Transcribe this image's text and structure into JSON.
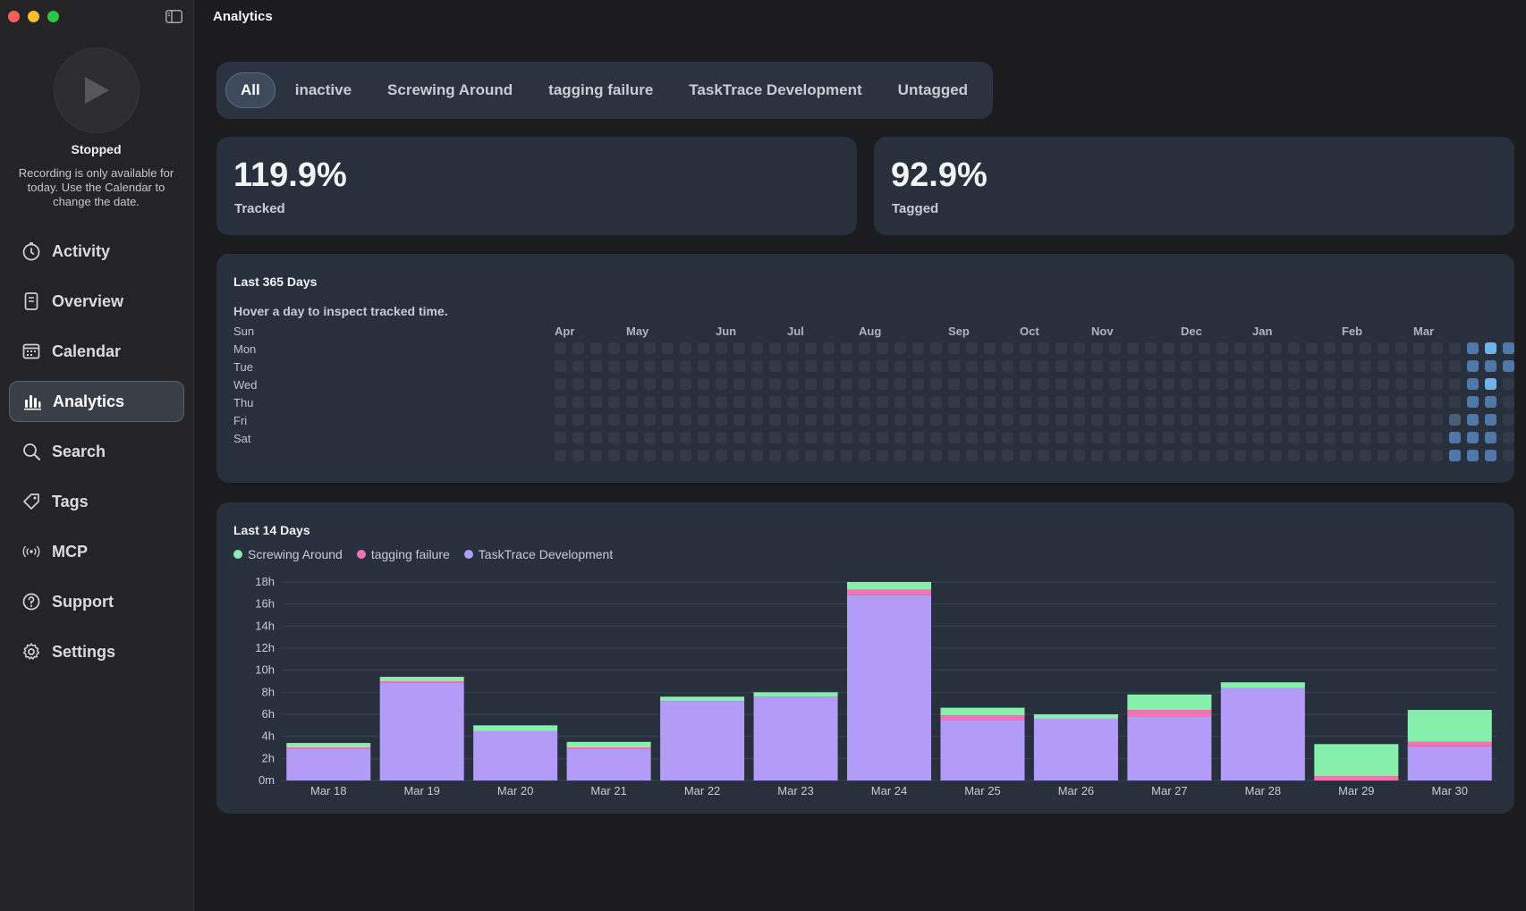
{
  "window": {
    "title": "Analytics"
  },
  "sidebar": {
    "status": "Stopped",
    "note": "Recording is only available for today. Use the Calendar to change the date.",
    "items": [
      {
        "label": "Activity",
        "icon": "clock-icon"
      },
      {
        "label": "Overview",
        "icon": "document-icon"
      },
      {
        "label": "Calendar",
        "icon": "calendar-icon"
      },
      {
        "label": "Analytics",
        "icon": "bar-chart-icon",
        "active": true
      },
      {
        "label": "Search",
        "icon": "search-icon"
      },
      {
        "label": "Tags",
        "icon": "tag-icon"
      },
      {
        "label": "MCP",
        "icon": "broadcast-icon"
      },
      {
        "label": "Support",
        "icon": "help-icon"
      },
      {
        "label": "Settings",
        "icon": "gear-icon"
      }
    ]
  },
  "filters": {
    "items": [
      "All",
      "inactive",
      "Screwing Around",
      "tagging failure",
      "TaskTrace Development",
      "Untagged"
    ],
    "active": "All"
  },
  "stats": {
    "tracked": {
      "value": "119.9%",
      "label": "Tracked"
    },
    "tagged": {
      "value": "92.9%",
      "label": "Tagged"
    }
  },
  "heatmap": {
    "title": "Last 365 Days",
    "subtitle": "Hover a day to inspect tracked time.",
    "days": [
      "Sun",
      "Mon",
      "Tue",
      "Wed",
      "Thu",
      "Fri",
      "Sat"
    ],
    "months": [
      "Apr",
      "May",
      "Jun",
      "Jul",
      "Aug",
      "Sep",
      "Oct",
      "Nov",
      "Dec",
      "Jan",
      "Feb",
      "Mar"
    ],
    "active_cells": [
      {
        "week": 51,
        "day": 1,
        "level": 2
      },
      {
        "week": 52,
        "day": 1,
        "level": 3
      },
      {
        "week": 53,
        "day": 1,
        "level": 2
      },
      {
        "week": 52,
        "day": 2,
        "level": 2
      },
      {
        "week": 53,
        "day": 2,
        "level": 2
      },
      {
        "week": 51,
        "day": 2,
        "level": 2
      },
      {
        "week": 51,
        "day": 3,
        "level": 2
      },
      {
        "week": 52,
        "day": 3,
        "level": 3
      },
      {
        "week": 51,
        "day": 4,
        "level": 2
      },
      {
        "week": 52,
        "day": 4,
        "level": 2
      },
      {
        "week": 50,
        "day": 5,
        "level": 1
      },
      {
        "week": 51,
        "day": 5,
        "level": 2
      },
      {
        "week": 52,
        "day": 5,
        "level": 2
      },
      {
        "week": 50,
        "day": 6,
        "level": 2
      },
      {
        "week": 51,
        "day": 6,
        "level": 2
      },
      {
        "week": 52,
        "day": 6,
        "level": 2
      },
      {
        "week": 50,
        "day": 7,
        "level": 2
      },
      {
        "week": 51,
        "day": 7,
        "level": 2
      },
      {
        "week": 52,
        "day": 7,
        "level": 2
      }
    ],
    "colors": {
      "empty": "#323a48",
      "level1": "#4a5c76",
      "level2": "#4f77a8",
      "level3": "#6fb3ea"
    }
  },
  "chart_data": {
    "type": "bar",
    "stacked": true,
    "title": "Last 14 Days",
    "categories": [
      "Mar 18",
      "Mar 19",
      "Mar 20",
      "Mar 21",
      "Mar 22",
      "Mar 23",
      "Mar 24",
      "Mar 25",
      "Mar 26",
      "Mar 27",
      "Mar 28",
      "Mar 29",
      "Mar 30"
    ],
    "series": [
      {
        "name": "TaskTrace Development",
        "color": "#b39cf7",
        "values": [
          2.9,
          8.9,
          4.5,
          2.9,
          7.2,
          7.6,
          16.8,
          5.5,
          5.6,
          5.8,
          8.4,
          0.0,
          3.1
        ]
      },
      {
        "name": "tagging failure",
        "color": "#f472b6",
        "values": [
          0.1,
          0.1,
          0.0,
          0.1,
          0.0,
          0.0,
          0.5,
          0.4,
          0.0,
          0.6,
          0.0,
          0.4,
          0.4
        ]
      },
      {
        "name": "Screwing Around",
        "color": "#86efac",
        "values": [
          0.4,
          0.4,
          0.5,
          0.5,
          0.4,
          0.4,
          0.7,
          0.7,
          0.4,
          1.4,
          0.5,
          2.9,
          2.9
        ]
      }
    ],
    "legend_order": [
      "Screwing Around",
      "tagging failure",
      "TaskTrace Development"
    ],
    "y_ticks": [
      "0m",
      "2h",
      "4h",
      "6h",
      "8h",
      "10h",
      "12h",
      "14h",
      "16h",
      "18h"
    ],
    "ylim": [
      0,
      18
    ],
    "grid": true
  }
}
